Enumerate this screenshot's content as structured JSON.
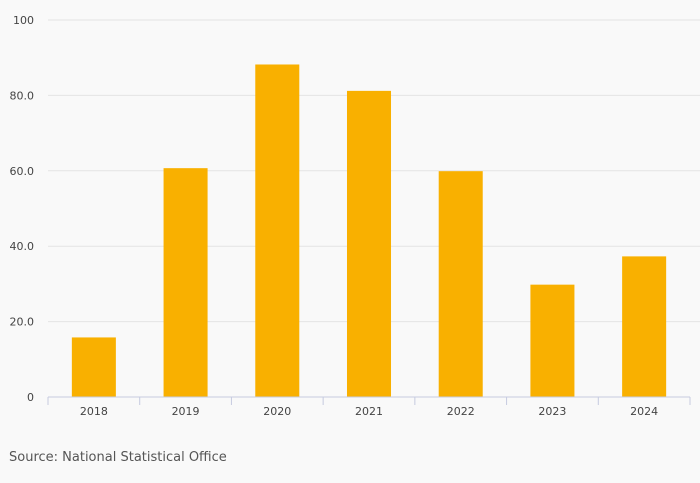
{
  "chart_data": {
    "type": "bar",
    "categories": [
      "2018",
      "2019",
      "2020",
      "2021",
      "2022",
      "2023",
      "2024"
    ],
    "values": [
      15.8,
      60.7,
      88.2,
      81.2,
      59.9,
      29.8,
      37.3
    ],
    "ylim": [
      0,
      100
    ],
    "y_ticks": [
      {
        "value": 0,
        "label": "0"
      },
      {
        "value": 20,
        "label": "20.0"
      },
      {
        "value": 40,
        "label": "40.0"
      },
      {
        "value": 60,
        "label": "60.0"
      },
      {
        "value": 80,
        "label": "80.0"
      },
      {
        "value": 100,
        "label": "100"
      }
    ],
    "grid": true,
    "legend": "none",
    "bar_color": "#f9b000"
  },
  "source": "Source: National Statistical Office"
}
